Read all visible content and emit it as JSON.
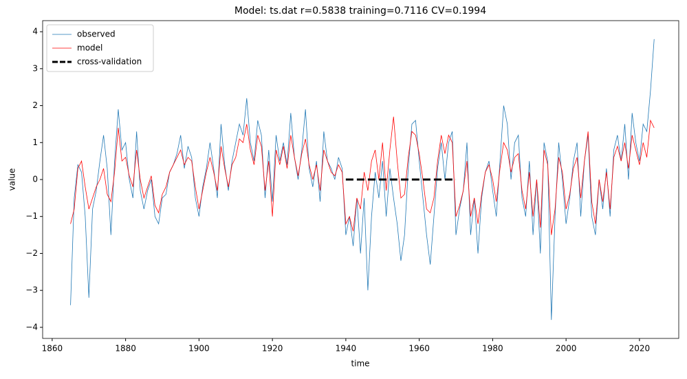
{
  "chart_data": {
    "type": "line",
    "title": "Model: ts.dat  r=0.5838  training=0.7116  CV=0.1994",
    "xlabel": "time",
    "ylabel": "value",
    "xlim": [
      1857.4,
      2030.7
    ],
    "ylim": [
      -4.3,
      4.3
    ],
    "xticks": [
      1860,
      1880,
      1900,
      1920,
      1940,
      1960,
      1980,
      2000,
      2020
    ],
    "yticks": [
      {
        "value": -4,
        "label": "−4"
      },
      {
        "value": -3,
        "label": "−3"
      },
      {
        "value": -2,
        "label": "−2"
      },
      {
        "value": -1,
        "label": "−1"
      },
      0,
      1,
      2,
      3,
      4
    ],
    "legend": "upper left",
    "series": [
      {
        "name": "observed",
        "color": "#1f77b4",
        "style": "solid",
        "x": [
          1865,
          1866,
          1867,
          1868,
          1869,
          1870,
          1871,
          1872,
          1873,
          1874,
          1875,
          1876,
          1877,
          1878,
          1879,
          1880,
          1881,
          1882,
          1883,
          1884,
          1885,
          1886,
          1887,
          1888,
          1889,
          1890,
          1891,
          1892,
          1893,
          1894,
          1895,
          1896,
          1897,
          1898,
          1899,
          1900,
          1901,
          1902,
          1903,
          1904,
          1905,
          1906,
          1907,
          1908,
          1909,
          1910,
          1911,
          1912,
          1913,
          1914,
          1915,
          1916,
          1917,
          1918,
          1919,
          1920,
          1921,
          1922,
          1923,
          1924,
          1925,
          1926,
          1927,
          1928,
          1929,
          1930,
          1931,
          1932,
          1933,
          1934,
          1935,
          1936,
          1937,
          1938,
          1939,
          1940,
          1941,
          1942,
          1943,
          1944,
          1945,
          1946,
          1947,
          1948,
          1949,
          1950,
          1951,
          1952,
          1953,
          1954,
          1955,
          1956,
          1957,
          1958,
          1959,
          1960,
          1961,
          1962,
          1963,
          1964,
          1965,
          1966,
          1967,
          1968,
          1969,
          1970,
          1971,
          1972,
          1973,
          1974,
          1975,
          1976,
          1977,
          1978,
          1979,
          1980,
          1981,
          1982,
          1983,
          1984,
          1985,
          1986,
          1987,
          1988,
          1989,
          1990,
          1991,
          1992,
          1993,
          1994,
          1995,
          1996,
          1997,
          1998,
          1999,
          2000,
          2001,
          2002,
          2003,
          2004,
          2005,
          2006,
          2007,
          2008,
          2009,
          2010,
          2011,
          2012,
          2013,
          2014,
          2015,
          2016,
          2017,
          2018,
          2019,
          2020,
          2021,
          2022,
          2023,
          2024
        ],
        "values": [
          -3.4,
          -0.5,
          0.4,
          0.2,
          -1.0,
          -3.2,
          -0.8,
          -0.3,
          0.5,
          1.2,
          0.3,
          -1.5,
          0.5,
          1.9,
          0.8,
          1.0,
          0.0,
          -0.5,
          1.3,
          -0.3,
          -0.8,
          -0.3,
          0.0,
          -1.0,
          -1.2,
          -0.5,
          -0.4,
          0.2,
          0.4,
          0.7,
          1.2,
          0.3,
          0.9,
          0.6,
          -0.5,
          -1.0,
          -0.2,
          0.3,
          1.0,
          0.3,
          -0.5,
          1.5,
          0.4,
          -0.3,
          0.5,
          1.0,
          1.5,
          1.2,
          2.2,
          1.0,
          0.5,
          1.6,
          1.2,
          -0.5,
          0.8,
          -0.6,
          1.2,
          0.5,
          1.0,
          0.4,
          1.8,
          0.6,
          0.0,
          0.8,
          1.9,
          0.3,
          -0.2,
          0.5,
          -0.6,
          1.3,
          0.5,
          0.3,
          0.0,
          0.6,
          0.3,
          -1.5,
          -1.0,
          -1.8,
          -0.5,
          -2.0,
          -0.5,
          -3.0,
          -1.0,
          0.2,
          -0.5,
          0.5,
          -1.0,
          0.3,
          -0.5,
          -1.2,
          -2.2,
          -1.5,
          0.3,
          1.5,
          1.6,
          0.5,
          -0.5,
          -1.5,
          -2.3,
          -1.0,
          0.3,
          1.0,
          0.0,
          1.0,
          1.3,
          -1.5,
          -0.8,
          -0.3,
          1.0,
          -1.5,
          -0.5,
          -2.0,
          -0.5,
          0.2,
          0.5,
          -0.3,
          -1.0,
          0.5,
          2.0,
          1.5,
          0.0,
          1.0,
          1.2,
          -0.5,
          -1.0,
          0.5,
          -1.5,
          0.0,
          -2.0,
          1.0,
          0.5,
          -3.8,
          -1.0,
          1.0,
          0.0,
          -1.2,
          -0.5,
          0.5,
          1.0,
          -1.0,
          0.5,
          1.2,
          -1.0,
          -1.5,
          0.0,
          -0.8,
          0.3,
          -1.0,
          0.8,
          1.2,
          0.5,
          1.5,
          0.0,
          1.8,
          1.0,
          0.5,
          1.5,
          1.3,
          2.4,
          3.8
        ]
      },
      {
        "name": "model",
        "color": "#ff0000",
        "style": "solid",
        "x": [
          1865,
          1866,
          1867,
          1868,
          1869,
          1870,
          1871,
          1872,
          1873,
          1874,
          1875,
          1876,
          1877,
          1878,
          1879,
          1880,
          1881,
          1882,
          1883,
          1884,
          1885,
          1886,
          1887,
          1888,
          1889,
          1890,
          1891,
          1892,
          1893,
          1894,
          1895,
          1896,
          1897,
          1898,
          1899,
          1900,
          1901,
          1902,
          1903,
          1904,
          1905,
          1906,
          1907,
          1908,
          1909,
          1910,
          1911,
          1912,
          1913,
          1914,
          1915,
          1916,
          1917,
          1918,
          1919,
          1920,
          1921,
          1922,
          1923,
          1924,
          1925,
          1926,
          1927,
          1928,
          1929,
          1930,
          1931,
          1932,
          1933,
          1934,
          1935,
          1936,
          1937,
          1938,
          1939,
          1940,
          1941,
          1942,
          1943,
          1944,
          1945,
          1946,
          1947,
          1948,
          1949,
          1950,
          1951,
          1952,
          1953,
          1954,
          1955,
          1956,
          1957,
          1958,
          1959,
          1960,
          1961,
          1962,
          1963,
          1964,
          1965,
          1966,
          1967,
          1968,
          1969,
          1970,
          1971,
          1972,
          1973,
          1974,
          1975,
          1976,
          1977,
          1978,
          1979,
          1980,
          1981,
          1982,
          1983,
          1984,
          1985,
          1986,
          1987,
          1988,
          1989,
          1990,
          1991,
          1992,
          1993,
          1994,
          1995,
          1996,
          1997,
          1998,
          1999,
          2000,
          2001,
          2002,
          2003,
          2004,
          2005,
          2006,
          2007,
          2008,
          2009,
          2010,
          2011,
          2012,
          2013,
          2014,
          2015,
          2016,
          2017,
          2018,
          2019,
          2020,
          2021,
          2022,
          2023,
          2024
        ],
        "values": [
          -1.2,
          -0.8,
          0.3,
          0.5,
          -0.2,
          -0.8,
          -0.5,
          -0.2,
          0.0,
          0.3,
          -0.4,
          -0.6,
          0.2,
          1.4,
          0.5,
          0.6,
          0.1,
          -0.2,
          0.8,
          0.0,
          -0.5,
          -0.2,
          0.1,
          -0.7,
          -0.9,
          -0.4,
          -0.2,
          0.2,
          0.4,
          0.6,
          0.8,
          0.4,
          0.6,
          0.5,
          -0.2,
          -0.8,
          -0.3,
          0.2,
          0.6,
          0.2,
          -0.3,
          0.9,
          0.3,
          -0.2,
          0.4,
          0.6,
          1.1,
          1.0,
          1.5,
          0.8,
          0.4,
          1.2,
          0.9,
          -0.3,
          0.5,
          -1.0,
          0.8,
          0.4,
          0.9,
          0.3,
          1.2,
          0.6,
          0.1,
          0.7,
          1.1,
          0.4,
          0.0,
          0.4,
          -0.3,
          0.8,
          0.5,
          0.2,
          0.1,
          0.4,
          0.2,
          -1.2,
          -1.0,
          -1.4,
          -0.5,
          -0.8,
          0.2,
          -0.3,
          0.5,
          0.8,
          0.0,
          1.0,
          -0.3,
          0.8,
          1.7,
          0.5,
          -0.5,
          -0.4,
          0.6,
          1.3,
          1.2,
          0.7,
          0.0,
          -0.8,
          -0.9,
          -0.5,
          0.5,
          1.2,
          0.7,
          1.2,
          1.0,
          -1.0,
          -0.7,
          -0.3,
          0.5,
          -1.0,
          -0.5,
          -1.2,
          -0.4,
          0.2,
          0.4,
          0.0,
          -0.6,
          0.3,
          1.0,
          0.8,
          0.2,
          0.6,
          0.7,
          -0.3,
          -0.8,
          0.2,
          -1.0,
          0.0,
          -1.3,
          0.8,
          0.4,
          -1.5,
          -0.8,
          0.6,
          0.2,
          -0.8,
          -0.4,
          0.3,
          0.6,
          -0.5,
          0.5,
          1.3,
          -0.6,
          -1.2,
          0.0,
          -0.6,
          0.2,
          -0.8,
          0.6,
          0.9,
          0.5,
          1.0,
          0.3,
          1.2,
          0.8,
          0.4,
          1.0,
          0.6,
          1.6,
          1.4
        ]
      },
      {
        "name": "cross-validation",
        "color": "#000000",
        "style": "dashed",
        "x": [
          1940,
          1970
        ],
        "values": [
          0,
          0
        ]
      }
    ]
  }
}
